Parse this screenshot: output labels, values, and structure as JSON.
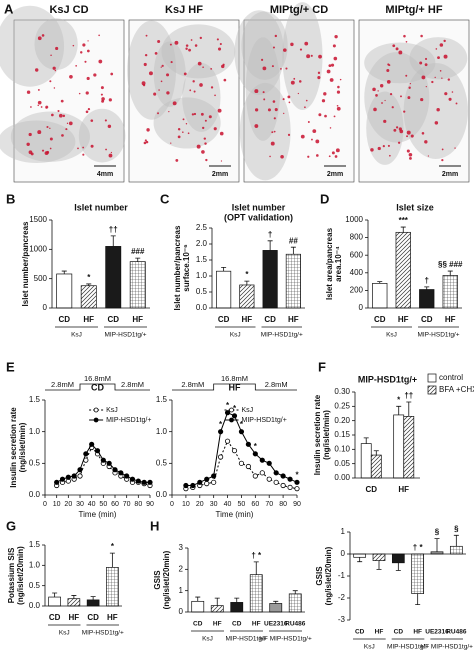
{
  "chart_data": [
    {
      "type": "images",
      "panel": "A",
      "images": [
        {
          "label": "KsJ CD",
          "scale": "4mm"
        },
        {
          "label": "KsJ HF",
          "scale": "2mm"
        },
        {
          "label": "MIPtg/+ CD",
          "scale": "2mm"
        },
        {
          "label": "MIPtg/+ HF",
          "scale": "2mm"
        }
      ]
    },
    {
      "type": "bar",
      "panel": "B",
      "title": "Islet number",
      "ylabel": "Islet number/pancreas",
      "ylim": [
        0,
        1500
      ],
      "yticks": [
        0,
        500,
        1000,
        1500
      ],
      "categories": [
        "CD",
        "HF",
        "CD",
        "HF"
      ],
      "groups": [
        "KsJ",
        "MIP-HSD1tg/+"
      ],
      "series": [
        {
          "values": [
            580,
            380,
            1050,
            790
          ],
          "errors": [
            50,
            30,
            180,
            60
          ],
          "patterns": [
            "white",
            "diagonal",
            "black",
            "grid"
          ],
          "annotations": [
            null,
            "*",
            "††",
            "###"
          ]
        }
      ]
    },
    {
      "type": "bar",
      "panel": "C",
      "title": "Islet number",
      "subtitle": "(OPT validation)",
      "ylabel": [
        "Islet number/pancreas",
        "surface.10⁻⁶"
      ],
      "ylim": [
        0,
        2.5
      ],
      "yticks": [
        {
          "value": 0,
          "label": "0.0"
        },
        0.5,
        {
          "value": 1,
          "label": "1.0"
        },
        1.5,
        {
          "value": 2,
          "label": "2.0"
        },
        2.5
      ],
      "categories": [
        "CD",
        "HF",
        "CD",
        "HF"
      ],
      "groups": [
        "KsJ",
        "MIP-HSD1tg/+"
      ],
      "series": [
        {
          "values": [
            1.15,
            0.72,
            1.8,
            1.68
          ],
          "errors": [
            0.12,
            0.12,
            0.3,
            0.22
          ],
          "patterns": [
            "white",
            "diagonal",
            "black",
            "grid"
          ],
          "annotations": [
            null,
            "*",
            "†",
            "##"
          ]
        }
      ]
    },
    {
      "type": "bar",
      "panel": "D",
      "title": "Islet size",
      "ylabel": [
        "Islet area/pancreas",
        "area.10⁻⁴"
      ],
      "ylim": [
        0,
        1000
      ],
      "yticks": [
        0,
        200,
        400,
        600,
        800,
        1000
      ],
      "categories": [
        "CD",
        "HF",
        "CD",
        "HF"
      ],
      "groups": [
        "KsJ",
        "MIP-HSD1tg/+"
      ],
      "series": [
        {
          "values": [
            280,
            860,
            210,
            370
          ],
          "errors": [
            20,
            60,
            30,
            50
          ],
          "patterns": [
            "white",
            "diagonal",
            "black",
            "grid"
          ],
          "annotations": [
            null,
            "***",
            "†",
            "§§ ###"
          ]
        }
      ]
    },
    {
      "type": "line",
      "panel": "E",
      "title": "CD",
      "stimulus": [
        "2.8mM",
        "16.8mM",
        "2.8mM"
      ],
      "xlabel": "Time (min)",
      "ylabel": [
        "Insulin secretion rate",
        "(ng/islet/min)"
      ],
      "xlim": [
        0,
        90
      ],
      "xticks": [
        0,
        10,
        20,
        30,
        40,
        50,
        60,
        70,
        80,
        90
      ],
      "ylim": [
        0,
        1.5
      ],
      "yticks": [
        {
          "value": 0,
          "label": "0.0"
        },
        0.5,
        {
          "value": 1,
          "label": "1.0"
        },
        1.5
      ],
      "x": [
        10,
        15,
        20,
        25,
        30,
        35,
        40,
        45,
        50,
        55,
        60,
        65,
        70,
        75,
        80,
        85,
        90
      ],
      "series": [
        {
          "name": "KsJ",
          "color": "#000000",
          "marker": "open",
          "dash": true,
          "values": [
            0.15,
            0.2,
            0.22,
            0.25,
            0.3,
            0.55,
            0.75,
            0.65,
            0.5,
            0.45,
            0.35,
            0.3,
            0.25,
            0.2,
            0.2,
            0.18,
            0.15
          ]
        },
        {
          "name": "MIP-HSD1tg/+",
          "color": "#000000",
          "marker": "filled",
          "dash": false,
          "values": [
            0.2,
            0.25,
            0.28,
            0.3,
            0.4,
            0.65,
            0.8,
            0.7,
            0.55,
            0.5,
            0.4,
            0.35,
            0.3,
            0.25,
            0.22,
            0.2,
            0.2
          ]
        }
      ]
    },
    {
      "type": "line",
      "title": "HF",
      "stimulus": [
        "2.8mM",
        "16.8mM",
        "2.8mM"
      ],
      "xlabel": "Time (min)",
      "xlim": [
        0,
        90
      ],
      "xticks": [
        0,
        10,
        20,
        30,
        40,
        50,
        60,
        70,
        80,
        90
      ],
      "ylim": [
        0,
        1.5
      ],
      "yticks": [
        {
          "value": 0,
          "label": "0.0"
        },
        0.5,
        {
          "value": 1,
          "label": "1.0"
        },
        1.5
      ],
      "x": [
        10,
        15,
        20,
        25,
        30,
        35,
        40,
        45,
        50,
        55,
        60,
        65,
        70,
        75,
        80,
        85,
        90
      ],
      "series": [
        {
          "name": "KsJ",
          "color": "#000000",
          "marker": "open",
          "dash": true,
          "values": [
            0.1,
            0.12,
            0.15,
            0.18,
            0.2,
            0.6,
            0.85,
            0.7,
            0.5,
            0.45,
            0.3,
            0.35,
            0.25,
            0.2,
            0.15,
            0.12,
            0.1
          ]
        },
        {
          "name": "MIP-HSD1tg/+",
          "color": "#000000",
          "marker": "filled",
          "dash": false,
          "values": [
            0.15,
            0.15,
            0.2,
            0.25,
            0.3,
            1.0,
            1.3,
            1.25,
            1.0,
            0.8,
            0.65,
            0.55,
            0.5,
            0.35,
            0.3,
            0.25,
            0.2
          ],
          "annotations": [
            null,
            null,
            null,
            null,
            null,
            "*",
            "*",
            "*",
            "*",
            null,
            "*",
            null,
            null,
            null,
            null,
            null,
            "*"
          ]
        }
      ]
    },
    {
      "type": "bar",
      "panel": "F",
      "title": "MIP-HSD1tg/+",
      "ylabel": [
        "Insulin secretion rate",
        "(ng/islet/min)"
      ],
      "ylim": [
        0,
        0.3
      ],
      "yticks": [
        {
          "value": 0,
          "label": "0.00"
        },
        {
          "value": 0.05,
          "label": "0.05"
        },
        {
          "value": 0.1,
          "label": "0.10"
        },
        {
          "value": 0.15,
          "label": "0.15"
        },
        {
          "value": 0.2,
          "label": "0.20"
        },
        {
          "value": 0.25,
          "label": "0.25"
        },
        {
          "value": 0.3,
          "label": "0.30"
        }
      ],
      "categories": [
        "CD",
        "HF"
      ],
      "series": [
        {
          "name": "control",
          "pattern": "white",
          "values": [
            0.12,
            0.22
          ],
          "errors": [
            0.02,
            0.03
          ],
          "annotations": [
            null,
            "*"
          ]
        },
        {
          "name": "BFA +CHX",
          "pattern": "diagonal",
          "values": [
            0.08,
            0.215
          ],
          "errors": [
            0.015,
            0.05
          ],
          "annotations": [
            null,
            "††"
          ]
        }
      ]
    },
    {
      "type": "bar",
      "panel": "G",
      "ylabel": [
        "Potassium SIS",
        "(ng/islet/20min)"
      ],
      "ylim": [
        0,
        1.5
      ],
      "yticks": [
        {
          "value": 0,
          "label": "0.0"
        },
        0.5,
        {
          "value": 1,
          "label": "1.0"
        },
        1.5
      ],
      "categories": [
        "CD",
        "HF",
        "CD",
        "HF"
      ],
      "groups": [
        "KsJ",
        "MIP-HSD1tg/+"
      ],
      "series": [
        {
          "values": [
            0.22,
            0.18,
            0.15,
            0.95
          ],
          "errors": [
            0.1,
            0.08,
            0.08,
            0.35
          ],
          "patterns": [
            "white",
            "diagonal",
            "black",
            "grid"
          ],
          "annotations": [
            null,
            null,
            null,
            "*"
          ]
        }
      ]
    },
    {
      "type": "bar",
      "panel": "H",
      "ylabel": [
        "GSIS",
        "(ng/islet/20min)"
      ],
      "ylim": [
        0,
        3
      ],
      "yticks": [
        0,
        1,
        2,
        3
      ],
      "categories": [
        "CD",
        "HF",
        "CD",
        "HF",
        "UE2316",
        "RU486"
      ],
      "groups": [
        "KsJ",
        "MIP-HSD1tg/+",
        "HF MIP-HSD1tg/+"
      ],
      "series": [
        {
          "values": [
            0.5,
            0.3,
            0.45,
            1.75,
            0.4,
            0.85
          ],
          "errors": [
            0.2,
            0.35,
            0.2,
            0.6,
            0.1,
            0.15
          ],
          "patterns": [
            "white",
            "diagonal",
            "black",
            "grid",
            "gray",
            "grid"
          ],
          "annotations": [
            null,
            null,
            null,
            "† *",
            null,
            null
          ]
        }
      ]
    },
    {
      "type": "bar",
      "ylabel": [
        "GSIS",
        "(ng/islet/20min)"
      ],
      "ylim": [
        -3,
        1
      ],
      "yticks": [
        -3,
        -2,
        -1,
        0,
        1
      ],
      "categories": [
        "CD",
        "HF",
        "CD",
        "HF",
        "UE2316",
        "RU486"
      ],
      "groups": [
        "KsJ",
        "MIP-HSD1tg/+",
        "HF MIP-HSD1tg/+"
      ],
      "series": [
        {
          "values": [
            -0.15,
            -0.3,
            -0.4,
            -1.8,
            0.1,
            0.35
          ],
          "errors": [
            0.2,
            0.4,
            0.35,
            0.5,
            0.6,
            0.5
          ],
          "patterns": [
            "white",
            "diagonal",
            "black",
            "grid",
            "gray",
            "grid"
          ],
          "annotations": [
            null,
            null,
            null,
            "† *",
            "§",
            "§"
          ]
        }
      ]
    }
  ]
}
